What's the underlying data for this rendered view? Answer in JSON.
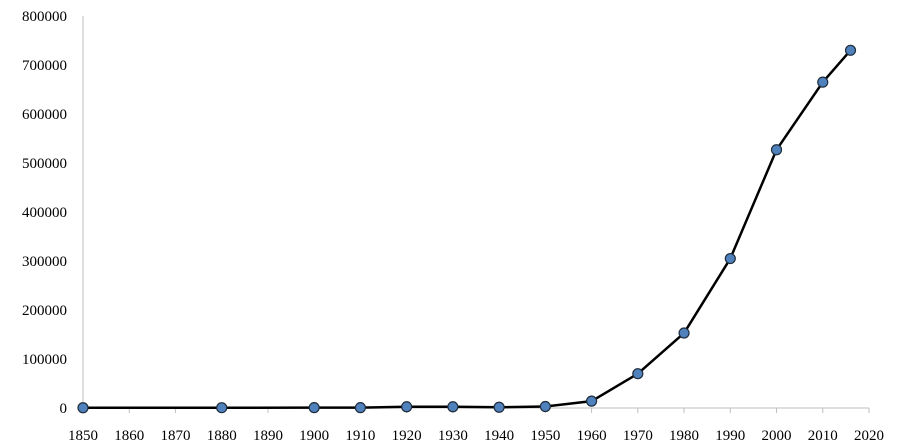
{
  "chart_data": {
    "type": "line",
    "title": "",
    "xlabel": "",
    "ylabel": "",
    "xlim": [
      1850,
      2020
    ],
    "ylim": [
      0,
      800000
    ],
    "x_ticks": [
      "1850",
      "1860",
      "1870",
      "1880",
      "1890",
      "1900",
      "1910",
      "1920",
      "1930",
      "1940",
      "1950",
      "1960",
      "1970",
      "1980",
      "1990",
      "2000",
      "2010",
      "2020"
    ],
    "y_ticks": [
      "0",
      "100000",
      "200000",
      "300000",
      "400000",
      "500000",
      "600000",
      "700000",
      "800000"
    ],
    "grid": false,
    "legend": "none",
    "series": [
      {
        "x": [
          1850,
          1880,
          1900,
          1910,
          1920,
          1930,
          1940,
          1950,
          1960,
          1970,
          1980,
          1990,
          2000,
          2010,
          2016
        ],
        "y": [
          500,
          600,
          700,
          700,
          2500,
          2500,
          1500,
          3000,
          14000,
          70000,
          153000,
          305000,
          527000,
          665000,
          730000
        ]
      }
    ],
    "colors": {
      "line": "#000000",
      "marker_fill": "#4f81bd",
      "marker_stroke": "#1f2d3d",
      "axis": "#bfbfbf"
    }
  }
}
